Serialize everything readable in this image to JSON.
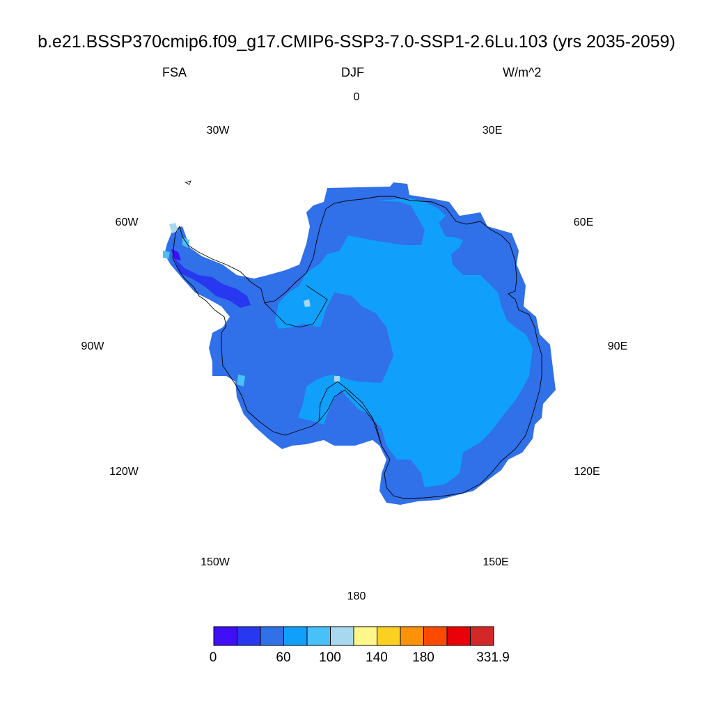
{
  "title": "b.e21.BSSP370cmip6.f09_g17.CMIP6-SSP3-7.0-SSP1-2.6Lu.103 (yrs 2035-2059)",
  "subtitle_left": "FSA",
  "subtitle_center": "DJF",
  "subtitle_right": "W/m^2",
  "longitude_labels": [
    "0",
    "30E",
    "60E",
    "90E",
    "120E",
    "150E",
    "180",
    "150W",
    "120W",
    "90W",
    "60W",
    "30W"
  ],
  "colorbar": {
    "colors": [
      "#3f0ff5",
      "#2838f0",
      "#3070e8",
      "#10a0fc",
      "#48c0f8",
      "#a8d8f0",
      "#fff78c",
      "#fcd020",
      "#fc9208",
      "#fc4a02",
      "#ea0008",
      "#d42828"
    ],
    "labels": [
      "0",
      "60",
      "100",
      "140",
      "180",
      "331.9"
    ]
  },
  "map_colors": {
    "interior": "#10a0fc",
    "coastal": "#3070e8",
    "low": "#2838f0",
    "very_low": "#3f0ff5",
    "light": "#48c0f8",
    "pale": "#a8d8f0",
    "coastline": "#000000"
  }
}
